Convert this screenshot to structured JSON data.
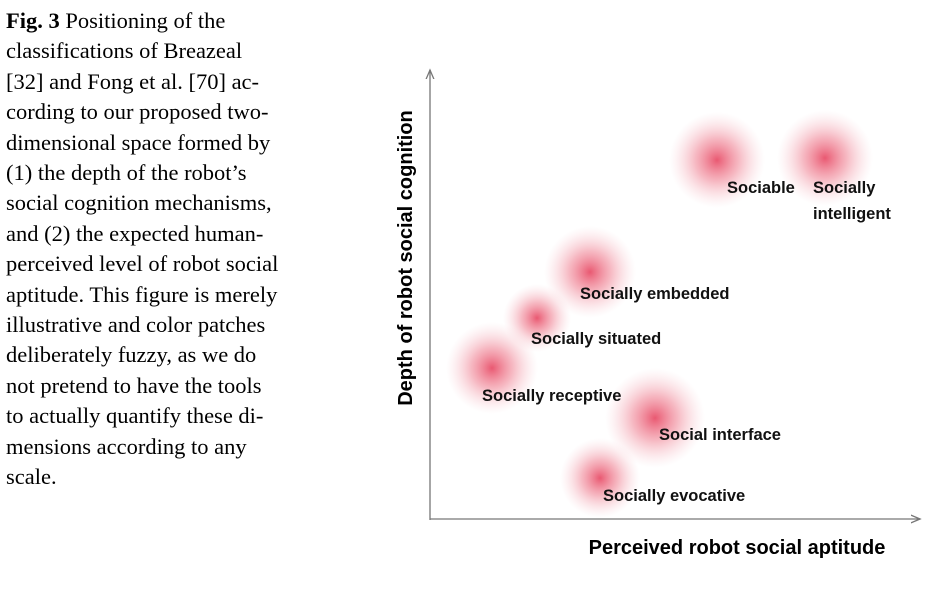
{
  "caption": {
    "label": "Fig. 3",
    "lines": [
      "Positioning of the",
      "classifications of Breazeal",
      "[32] and Fong et al. [70] ac-",
      "cording to our proposed two-",
      "dimensional space formed by",
      "(1) the depth of the robot’s",
      "social cognition mechanisms,",
      "and (2) the expected human-",
      "perceived level of robot social",
      "aptitude. This figure is merely",
      "illustrative and color patches",
      "deliberately fuzzy, as we do",
      "not pretend to have the tools",
      "to actually quantify these di-",
      "mensions according to any",
      "scale."
    ]
  },
  "figure": {
    "y_axis_label": "Depth of robot social cognition",
    "x_axis_label": "Perceived robot social aptitude",
    "nodes": [
      {
        "lines": [
          "Sociable"
        ]
      },
      {
        "lines": [
          "Socially",
          "intelligent"
        ]
      },
      {
        "lines": [
          "Socially embedded"
        ]
      },
      {
        "lines": [
          "Socially situated"
        ]
      },
      {
        "lines": [
          "Socially receptive"
        ]
      },
      {
        "lines": [
          "Social interface"
        ]
      },
      {
        "lines": [
          "Socially evocative"
        ]
      }
    ]
  }
}
